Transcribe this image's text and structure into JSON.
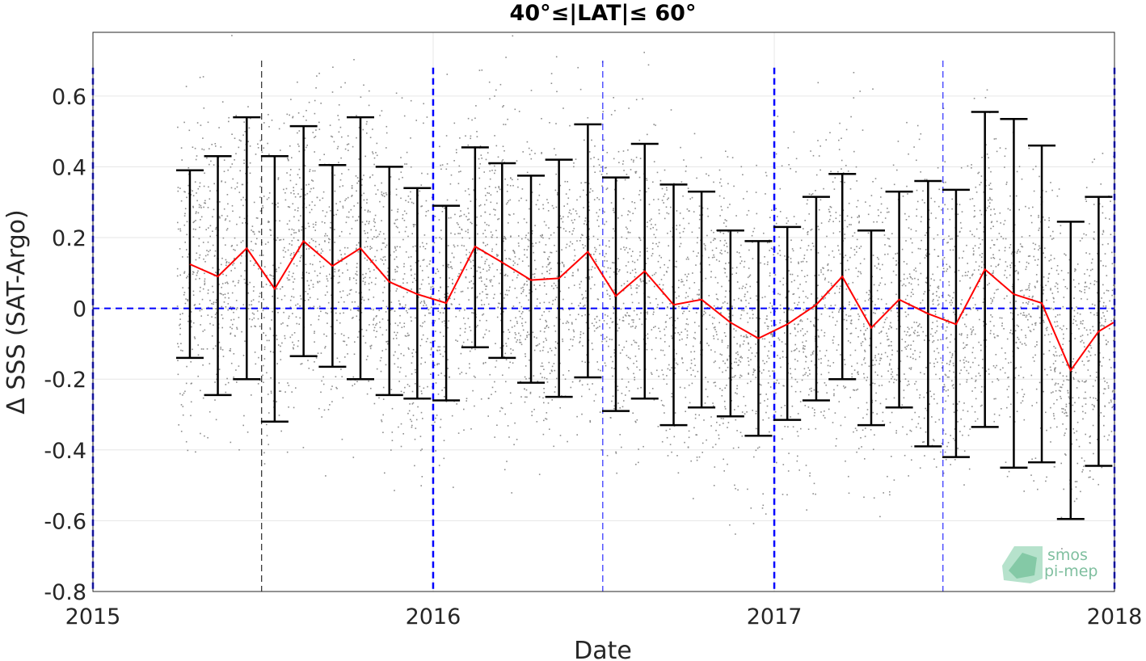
{
  "chart_data": {
    "type": "line",
    "title": "40°≤|LAT|≤ 60°",
    "xlabel": "Date",
    "ylabel": "Δ SSS (SAT-Argo)",
    "xlim": [
      "2015-01-01",
      "2018-01-01"
    ],
    "ylim": [
      -0.8,
      0.78
    ],
    "xticks": [
      "2015",
      "2016",
      "2017",
      "2018"
    ],
    "yticks": [
      -0.8,
      -0.6,
      -0.4,
      -0.2,
      0,
      0.2,
      0.4,
      0.6
    ],
    "ytick_labels": [
      "-0.8",
      "-0.6",
      "-0.4",
      "-0.2",
      "0",
      "0.2",
      "0.4",
      "0.6"
    ],
    "grid": true,
    "series": [
      {
        "role": "monthly mean with ±std error bars",
        "line_color": "#ff0000",
        "errorbar_color": "#000000",
        "dates": [
          "2015-04-15",
          "2015-05-15",
          "2015-06-15",
          "2015-07-15",
          "2015-08-15",
          "2015-09-15",
          "2015-10-15",
          "2015-11-15",
          "2015-12-15",
          "2016-01-15",
          "2016-02-15",
          "2016-03-15",
          "2016-04-15",
          "2016-05-15",
          "2016-06-15",
          "2016-07-15",
          "2016-08-15",
          "2016-09-15",
          "2016-10-15",
          "2016-11-15",
          "2016-12-15",
          "2017-01-15",
          "2017-02-15",
          "2017-03-15",
          "2017-04-15",
          "2017-05-15",
          "2017-06-15",
          "2017-07-15",
          "2017-08-15",
          "2017-09-15",
          "2017-10-15",
          "2017-11-15",
          "2017-12-15",
          "2017-12-31"
        ],
        "mean": [
          0.125,
          0.09,
          0.17,
          0.055,
          0.19,
          0.12,
          0.17,
          0.075,
          0.04,
          0.015,
          0.175,
          0.13,
          0.08,
          0.085,
          0.16,
          0.035,
          0.105,
          0.01,
          0.025,
          -0.04,
          -0.085,
          -0.045,
          0.01,
          0.09,
          -0.055,
          0.025,
          -0.015,
          -0.045,
          0.11,
          0.04,
          0.015,
          -0.175,
          -0.065,
          -0.04
        ],
        "upper": [
          0.39,
          0.43,
          0.54,
          0.43,
          0.515,
          0.405,
          0.54,
          0.4,
          0.34,
          0.29,
          0.455,
          0.41,
          0.375,
          0.42,
          0.52,
          0.37,
          0.465,
          0.35,
          0.33,
          0.22,
          0.19,
          0.23,
          0.315,
          0.38,
          0.22,
          0.33,
          0.36,
          0.335,
          0.555,
          0.535,
          0.46,
          0.245,
          0.315,
          null
        ],
        "lower": [
          -0.14,
          -0.245,
          -0.2,
          -0.32,
          -0.135,
          -0.165,
          -0.2,
          -0.245,
          -0.255,
          -0.26,
          -0.11,
          -0.14,
          -0.21,
          -0.25,
          -0.195,
          -0.29,
          -0.255,
          -0.33,
          -0.28,
          -0.305,
          -0.36,
          -0.315,
          -0.26,
          -0.2,
          -0.33,
          -0.28,
          -0.39,
          -0.42,
          -0.335,
          -0.45,
          -0.435,
          -0.595,
          -0.445,
          null
        ]
      }
    ],
    "scatter_points": {
      "color": "#8c8c8c",
      "description_count": 6000,
      "date_range": [
        "2015-04-01",
        "2017-12-31"
      ],
      "cluster": "points concentrated around the monthly mean within roughly ±0.4"
    },
    "reference_lines": {
      "zero_line": {
        "y": 0,
        "color": "#0000ff",
        "style": "dashed"
      },
      "year_lines": {
        "dates": [
          "2015-01-01",
          "2016-01-01",
          "2017-01-01",
          "2018-01-01"
        ],
        "color": "#0000ff",
        "style": "dashed"
      },
      "half_year_lines": {
        "dates": [
          "2015-07-01",
          "2016-07-01",
          "2017-07-01"
        ],
        "colors": [
          "#000000",
          "#0000ff",
          "#0000ff"
        ],
        "style": "dashed"
      }
    }
  },
  "logo": {
    "line1": "smos",
    "line2": "pi-mep"
  }
}
